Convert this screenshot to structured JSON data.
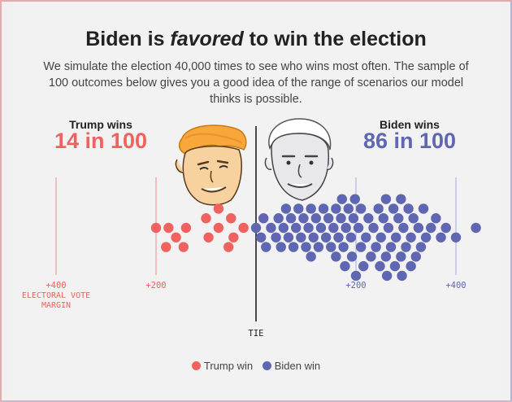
{
  "header": {
    "title_prefix": "Biden is ",
    "title_emph": "favored",
    "title_suffix": " to win the election",
    "subtitle": "We simulate the election 40,000 times to see who wins most often. The sample of 100 outcomes below gives you a good idea of the range of scenarios our model thinks is possible."
  },
  "trump": {
    "label": "Trump wins",
    "count": "14 in 100",
    "color": "#f0625f"
  },
  "biden": {
    "label": "Biden wins",
    "count": "86 in 100",
    "color": "#5f66b2"
  },
  "axis": {
    "margin_label_line1": "ELECTORAL VOTE",
    "margin_label_line2": "MARGIN",
    "tie_label": "TIE"
  },
  "legend": {
    "trump": "Trump win",
    "biden": "Biden win"
  },
  "chart_data": {
    "type": "scatter",
    "title": "Biden is favored to win the election",
    "xlabel": "ELECTORAL VOTE MARGIN",
    "x_ticks": [
      {
        "value": -400,
        "label": "+400"
      },
      {
        "value": -200,
        "label": "+200"
      },
      {
        "value": 0,
        "label": "TIE"
      },
      {
        "value": 200,
        "label": "+200"
      },
      {
        "value": 400,
        "label": "+400"
      }
    ],
    "xlim": [
      -400,
      400
    ],
    "series": [
      {
        "name": "Trump win",
        "color": "#f0625f",
        "x_margins": [
          -200,
          -175,
          -145,
          -160,
          -100,
          -75,
          -55,
          -25,
          -45,
          -75,
          -50,
          -180,
          -140,
          -95
        ]
      },
      {
        "name": "Biden win",
        "color": "#5f66b2",
        "x_margins": [
          0,
          10,
          20,
          30,
          40,
          45,
          50,
          55,
          65,
          70,
          75,
          80,
          85,
          90,
          95,
          100,
          105,
          110,
          115,
          120,
          125,
          130,
          135,
          140,
          145,
          150,
          155,
          160,
          165,
          170,
          172,
          175,
          178,
          180,
          185,
          190,
          192,
          195,
          198,
          200,
          205,
          210,
          215,
          220,
          225,
          230,
          235,
          240,
          245,
          248,
          250,
          255,
          260,
          262,
          265,
          270,
          275,
          278,
          280,
          285,
          290,
          292,
          295,
          300,
          305,
          310,
          315,
          320,
          325,
          330,
          340,
          350,
          360,
          370,
          380,
          400,
          15,
          60,
          110,
          160,
          210,
          260,
          290,
          310,
          335,
          440
        ]
      }
    ]
  }
}
